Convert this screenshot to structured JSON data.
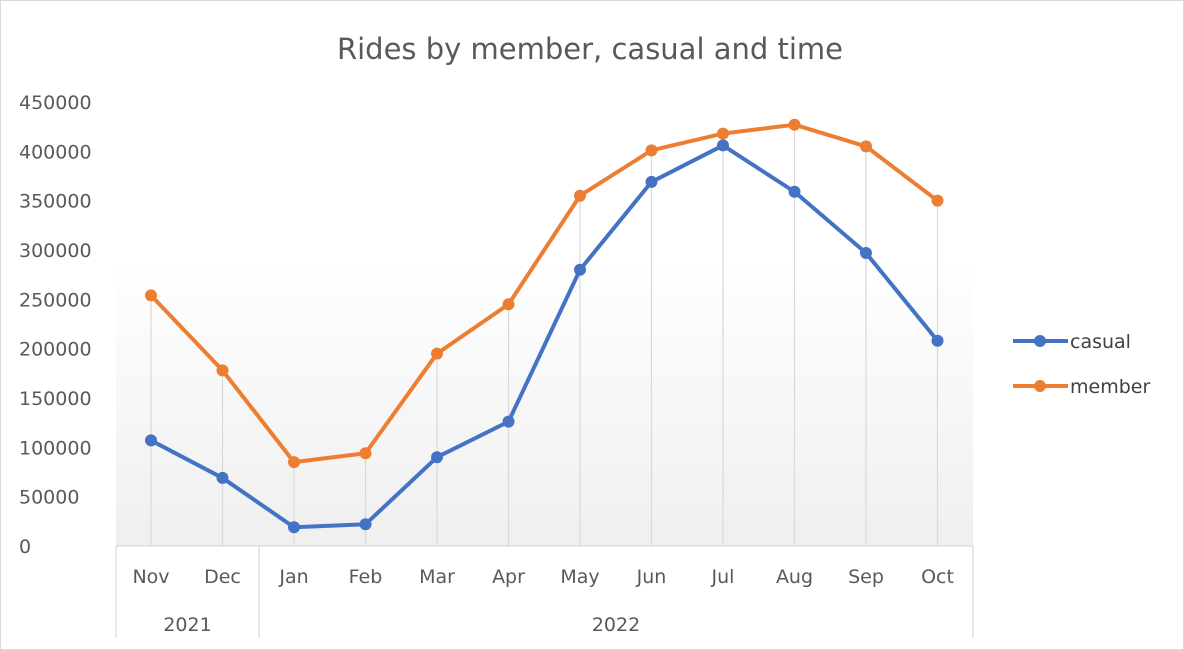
{
  "chart_data": {
    "type": "line",
    "title": "Rides by member, casual and time",
    "xlabel": "",
    "ylabel": "",
    "ylim": [
      0,
      450000
    ],
    "yticks": [
      0,
      50000,
      100000,
      150000,
      200000,
      250000,
      300000,
      350000,
      400000,
      450000
    ],
    "categories": [
      "Nov",
      "Dec",
      "Jan",
      "Feb",
      "Mar",
      "Apr",
      "May",
      "Jun",
      "Jul",
      "Aug",
      "Sep",
      "Oct"
    ],
    "year_groups": [
      {
        "label": "2021",
        "count": 2
      },
      {
        "label": "2022",
        "count": 10
      }
    ],
    "series": [
      {
        "name": "casual",
        "color": "#4472c4",
        "values": [
          107000,
          69000,
          19000,
          22000,
          90000,
          126000,
          280000,
          369000,
          406000,
          359000,
          297000,
          208000
        ]
      },
      {
        "name": "member",
        "color": "#ed7d31",
        "values": [
          254000,
          178000,
          85000,
          94000,
          195000,
          245000,
          355000,
          401000,
          418000,
          427000,
          405000,
          350000
        ]
      }
    ],
    "grid": "vertical drop lines",
    "legend_position": "right"
  }
}
